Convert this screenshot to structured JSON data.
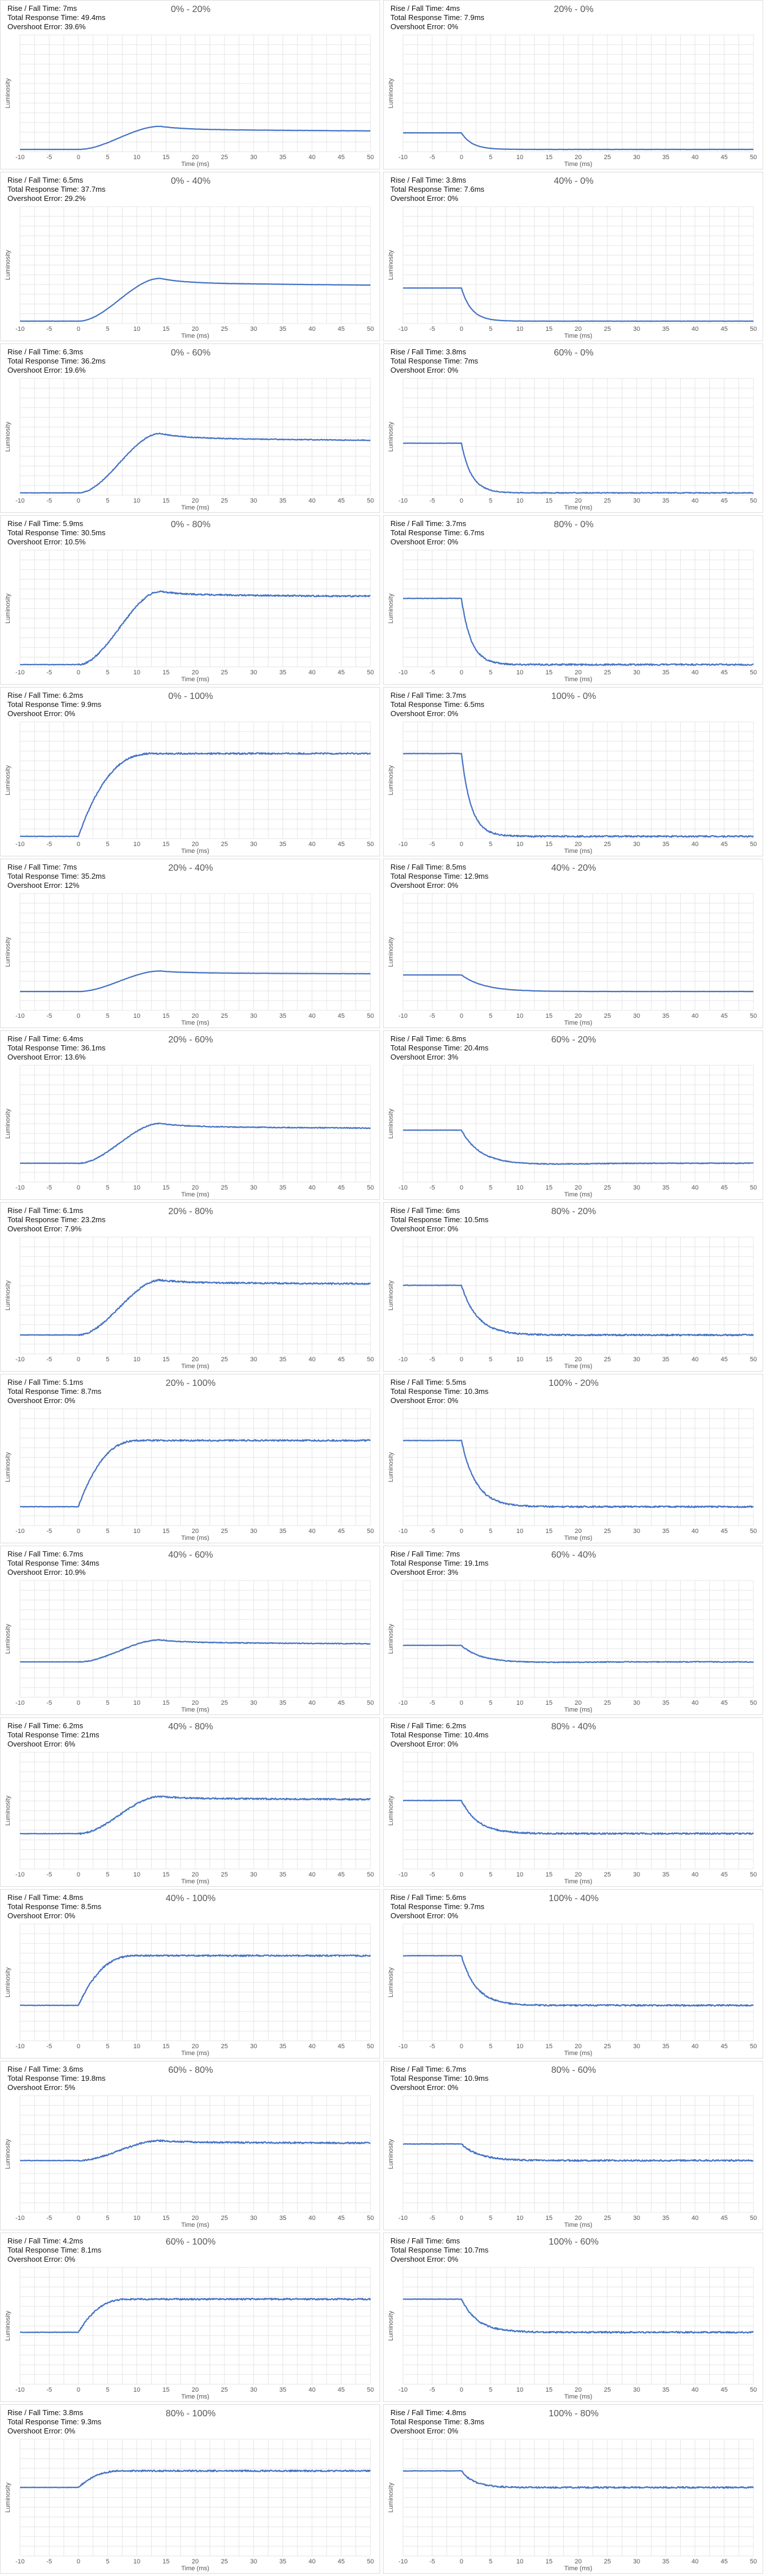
{
  "chart_data": {
    "type": "line",
    "xlabel": "Time (ms)",
    "ylabel": "Luminosity",
    "xlim": [
      -10,
      50
    ],
    "xticks": [
      -10,
      -5,
      0,
      5,
      10,
      15,
      20,
      25,
      30,
      35,
      40,
      45,
      50
    ],
    "grid": true,
    "line_color": "#4472c4",
    "stat_labels": {
      "rise_fall": "Rise / Fall Time: ",
      "total": "Total Response Time: ",
      "overshoot": "Overshoot Error: "
    },
    "panels": [
      {
        "title": "0% - 20%",
        "rise_fall": "7ms",
        "total": "49.4ms",
        "overshoot": "39.6%",
        "from": 0,
        "to": 20,
        "rt": 7,
        "os": 39.6,
        "settle": 14
      },
      {
        "title": "20% - 0%",
        "rise_fall": "4ms",
        "total": "7.9ms",
        "overshoot": "0%",
        "from": 20,
        "to": 0,
        "rt": 4,
        "os": 0,
        "settle": 0
      },
      {
        "title": "0% - 40%",
        "rise_fall": "6.5ms",
        "total": "37.7ms",
        "overshoot": "29.2%",
        "from": 0,
        "to": 40,
        "rt": 6.5,
        "os": 29.2,
        "settle": 14
      },
      {
        "title": "40% - 0%",
        "rise_fall": "3.8ms",
        "total": "7.6ms",
        "overshoot": "0%",
        "from": 40,
        "to": 0,
        "rt": 3.8,
        "os": 0,
        "settle": 0
      },
      {
        "title": "0% - 60%",
        "rise_fall": "6.3ms",
        "total": "36.2ms",
        "overshoot": "19.6%",
        "from": 0,
        "to": 60,
        "rt": 6.3,
        "os": 19.6,
        "settle": 14
      },
      {
        "title": "60% - 0%",
        "rise_fall": "3.8ms",
        "total": "7ms",
        "overshoot": "0%",
        "from": 60,
        "to": 0,
        "rt": 3.8,
        "os": 0,
        "settle": 0
      },
      {
        "title": "0% - 80%",
        "rise_fall": "5.9ms",
        "total": "30.5ms",
        "overshoot": "10.5%",
        "from": 0,
        "to": 80,
        "rt": 5.9,
        "os": 10.5,
        "settle": 14
      },
      {
        "title": "80% - 0%",
        "rise_fall": "3.7ms",
        "total": "6.7ms",
        "overshoot": "0%",
        "from": 80,
        "to": 0,
        "rt": 3.7,
        "os": 0,
        "settle": 0
      },
      {
        "title": "0% - 100%",
        "rise_fall": "6.2ms",
        "total": "9.9ms",
        "overshoot": "0%",
        "from": 0,
        "to": 100,
        "rt": 6.2,
        "os": 0,
        "settle": 0
      },
      {
        "title": "100% - 0%",
        "rise_fall": "3.7ms",
        "total": "6.5ms",
        "overshoot": "0%",
        "from": 100,
        "to": 0,
        "rt": 3.7,
        "os": 0,
        "settle": 0
      },
      {
        "title": "20% - 40%",
        "rise_fall": "7ms",
        "total": "35.2ms",
        "overshoot": "12%",
        "from": 20,
        "to": 40,
        "rt": 7,
        "os": 12,
        "settle": 14
      },
      {
        "title": "40% - 20%",
        "rise_fall": "8.5ms",
        "total": "12.9ms",
        "overshoot": "0%",
        "from": 40,
        "to": 20,
        "rt": 8.5,
        "os": 0,
        "settle": 0
      },
      {
        "title": "20% - 60%",
        "rise_fall": "6.4ms",
        "total": "36.1ms",
        "overshoot": "13.6%",
        "from": 20,
        "to": 60,
        "rt": 6.4,
        "os": 13.6,
        "settle": 14
      },
      {
        "title": "60% - 20%",
        "rise_fall": "6.8ms",
        "total": "20.4ms",
        "overshoot": "3%",
        "from": 60,
        "to": 20,
        "rt": 6.8,
        "os": 3,
        "settle": 14
      },
      {
        "title": "20% - 80%",
        "rise_fall": "6.1ms",
        "total": "23.2ms",
        "overshoot": "7.9%",
        "from": 20,
        "to": 80,
        "rt": 6.1,
        "os": 7.9,
        "settle": 14
      },
      {
        "title": "80% - 20%",
        "rise_fall": "6ms",
        "total": "10.5ms",
        "overshoot": "0%",
        "from": 80,
        "to": 20,
        "rt": 6,
        "os": 0,
        "settle": 0
      },
      {
        "title": "20% - 100%",
        "rise_fall": "5.1ms",
        "total": "8.7ms",
        "overshoot": "0%",
        "from": 20,
        "to": 100,
        "rt": 5.1,
        "os": 0,
        "settle": 0
      },
      {
        "title": "100% - 20%",
        "rise_fall": "5.5ms",
        "total": "10.3ms",
        "overshoot": "0%",
        "from": 100,
        "to": 20,
        "rt": 5.5,
        "os": 0,
        "settle": 0
      },
      {
        "title": "40% - 60%",
        "rise_fall": "6.7ms",
        "total": "34ms",
        "overshoot": "10.9%",
        "from": 40,
        "to": 60,
        "rt": 6.7,
        "os": 10.9,
        "settle": 14
      },
      {
        "title": "60% - 40%",
        "rise_fall": "7ms",
        "total": "19.1ms",
        "overshoot": "3%",
        "from": 60,
        "to": 40,
        "rt": 7,
        "os": 3,
        "settle": 14
      },
      {
        "title": "40% - 80%",
        "rise_fall": "6.2ms",
        "total": "21ms",
        "overshoot": "6%",
        "from": 40,
        "to": 80,
        "rt": 6.2,
        "os": 6,
        "settle": 14
      },
      {
        "title": "80% - 40%",
        "rise_fall": "6.2ms",
        "total": "10.4ms",
        "overshoot": "0%",
        "from": 80,
        "to": 40,
        "rt": 6.2,
        "os": 0,
        "settle": 0
      },
      {
        "title": "40% - 100%",
        "rise_fall": "4.8ms",
        "total": "8.5ms",
        "overshoot": "0%",
        "from": 40,
        "to": 100,
        "rt": 4.8,
        "os": 0,
        "settle": 0
      },
      {
        "title": "100% - 40%",
        "rise_fall": "5.6ms",
        "total": "9.7ms",
        "overshoot": "0%",
        "from": 100,
        "to": 40,
        "rt": 5.6,
        "os": 0,
        "settle": 0
      },
      {
        "title": "60% - 80%",
        "rise_fall": "3.6ms",
        "total": "19.8ms",
        "overshoot": "5%",
        "from": 60,
        "to": 80,
        "rt": 3.6,
        "os": 5,
        "settle": 14
      },
      {
        "title": "80% - 60%",
        "rise_fall": "6.7ms",
        "total": "10.9ms",
        "overshoot": "0%",
        "from": 80,
        "to": 60,
        "rt": 6.7,
        "os": 0,
        "settle": 0
      },
      {
        "title": "60% - 100%",
        "rise_fall": "4.2ms",
        "total": "8.1ms",
        "overshoot": "0%",
        "from": 60,
        "to": 100,
        "rt": 4.2,
        "os": 0,
        "settle": 0
      },
      {
        "title": "100% - 60%",
        "rise_fall": "6ms",
        "total": "10.7ms",
        "overshoot": "0%",
        "from": 100,
        "to": 60,
        "rt": 6,
        "os": 0,
        "settle": 0
      },
      {
        "title": "80% - 100%",
        "rise_fall": "3.8ms",
        "total": "9.3ms",
        "overshoot": "0%",
        "from": 80,
        "to": 100,
        "rt": 3.8,
        "os": 0,
        "settle": 0
      },
      {
        "title": "100% - 80%",
        "rise_fall": "4.8ms",
        "total": "8.3ms",
        "overshoot": "0%",
        "from": 100,
        "to": 80,
        "rt": 4.8,
        "os": 0,
        "settle": 0
      }
    ]
  }
}
